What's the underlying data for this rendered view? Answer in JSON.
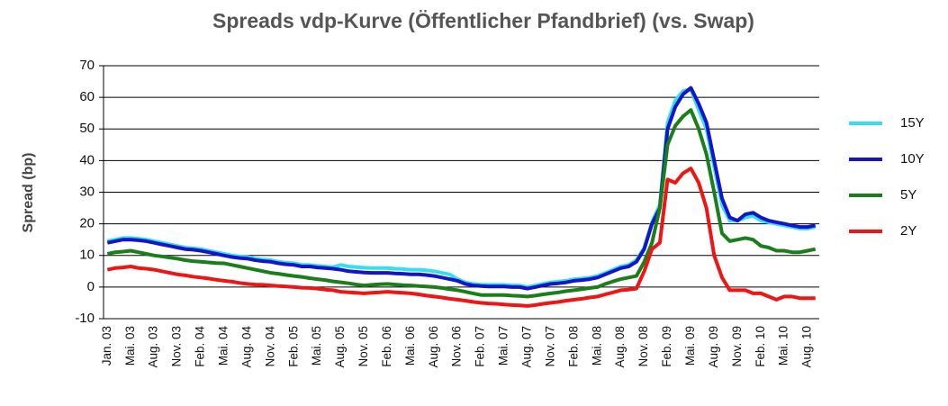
{
  "chart_data": {
    "type": "line",
    "title": "Spreads vdp-Kurve (Öffentlicher Pfandbrief) (vs. Swap)",
    "y_label": "Spread (bp)",
    "categories": [
      "Jan. 03",
      null,
      null,
      "Mai. 03",
      null,
      null,
      "Aug. 03",
      null,
      null,
      "Nov. 03",
      null,
      null,
      "Feb. 04",
      null,
      null,
      "Mai. 04",
      null,
      null,
      "Aug. 04",
      null,
      null,
      "Nov. 04",
      null,
      null,
      "Feb. 05",
      null,
      null,
      "Mai. 05",
      null,
      null,
      "Aug. 05",
      null,
      null,
      "Nov. 05",
      null,
      null,
      "Feb. 06",
      null,
      null,
      "Mai. 06",
      null,
      null,
      "Aug. 06",
      null,
      null,
      "Nov. 06",
      null,
      null,
      "Feb. 07",
      null,
      null,
      "Mai. 07",
      null,
      null,
      "Aug. 07",
      null,
      null,
      "Nov. 07",
      null,
      null,
      "Feb. 08",
      null,
      null,
      "Mai. 08",
      null,
      null,
      "Aug. 08",
      null,
      null,
      "Nov. 08",
      null,
      null,
      "Feb. 09",
      null,
      null,
      "Mai. 09",
      null,
      null,
      "Aug. 09",
      null,
      null,
      "Nov. 09",
      null,
      null,
      "Feb. 10",
      null,
      null,
      "Mai. 10",
      null,
      null,
      "Aug. 10",
      null
    ],
    "series": [
      {
        "name": "15Y",
        "color": "#33dff0",
        "values": [
          14.5,
          15,
          15.5,
          15.5,
          15.3,
          15,
          14.5,
          14,
          13.5,
          13,
          12.5,
          12.3,
          12,
          11.5,
          11,
          10.5,
          10,
          9.7,
          9.5,
          9,
          8.7,
          8.5,
          8,
          7.7,
          7.5,
          7,
          7,
          6.7,
          6.5,
          6.3,
          7,
          6.5,
          6.3,
          6.1,
          6,
          6,
          6,
          5.8,
          5.7,
          5.5,
          5.5,
          5.3,
          5,
          4.5,
          4,
          2.5,
          1.5,
          1,
          0.8,
          0.7,
          0.7,
          0.7,
          0.5,
          0.5,
          0,
          0.5,
          1,
          1.5,
          1.7,
          2,
          2.5,
          2.7,
          3,
          3.5,
          4.5,
          5.5,
          6.5,
          7,
          8.5,
          12.5,
          20.5,
          26,
          52,
          59,
          62,
          62.5,
          56,
          50,
          38,
          26,
          21,
          21,
          22,
          22.5,
          21,
          20.5,
          20,
          19.5,
          19,
          18.5,
          18.5,
          19
        ]
      },
      {
        "name": "10Y",
        "color": "#1414c8",
        "values": [
          14,
          14.5,
          15,
          15,
          14.8,
          14.5,
          14,
          13.5,
          13,
          12.5,
          12,
          11.8,
          11.5,
          11,
          10.5,
          10,
          9.5,
          9.2,
          9,
          8.5,
          8.2,
          8,
          7.5,
          7.2,
          7,
          6.5,
          6.5,
          6.2,
          6,
          5.8,
          5.5,
          5,
          4.8,
          4.6,
          4.5,
          4.5,
          4.5,
          4.3,
          4.2,
          4,
          4,
          3.8,
          3.5,
          3,
          2.5,
          2,
          1,
          0.5,
          0.3,
          0.2,
          0.2,
          0.2,
          0,
          0,
          -0.5,
          0,
          0.5,
          1,
          1.2,
          1.5,
          2,
          2.2,
          2.5,
          3,
          4,
          5,
          6,
          6.5,
          8,
          12,
          20,
          25,
          50,
          57,
          61,
          63,
          58,
          52,
          40,
          28,
          22,
          21,
          23,
          23.5,
          22,
          21,
          20.5,
          20,
          19.5,
          19,
          19,
          19.5
        ]
      },
      {
        "name": "5Y",
        "color": "#1a7f1a",
        "values": [
          10.5,
          11,
          11.2,
          11.5,
          11,
          10.5,
          10,
          9.7,
          9.3,
          9,
          8.5,
          8.2,
          8,
          7.8,
          7.6,
          7.5,
          7,
          6.5,
          6,
          5.5,
          5,
          4.5,
          4.2,
          3.8,
          3.5,
          3.2,
          2.8,
          2.5,
          2.2,
          1.8,
          1.5,
          1.2,
          0.8,
          0.5,
          0.7,
          0.9,
          1,
          0.8,
          0.6,
          0.5,
          0.3,
          0.2,
          0,
          -0.3,
          -0.7,
          -1,
          -1.5,
          -2,
          -2.5,
          -2.5,
          -2.5,
          -2.5,
          -2.7,
          -2.8,
          -3,
          -2.7,
          -2.3,
          -2,
          -1.7,
          -1.3,
          -1,
          -0.7,
          -0.3,
          0,
          1,
          1.8,
          2.5,
          3,
          3.5,
          8,
          14,
          25,
          45,
          51,
          54,
          56,
          50,
          42,
          30,
          17,
          14.5,
          15,
          15.5,
          15,
          13,
          12.5,
          11.5,
          11.5,
          11,
          11,
          11.5,
          12
        ]
      },
      {
        "name": "2Y",
        "color": "#ee1515",
        "values": [
          5.5,
          6,
          6.2,
          6.5,
          6,
          5.8,
          5.5,
          5,
          4.5,
          4,
          3.7,
          3.3,
          3,
          2.7,
          2.3,
          2,
          1.7,
          1.3,
          1,
          0.8,
          0.7,
          0.5,
          0.3,
          0.2,
          0,
          -0.2,
          -0.3,
          -0.5,
          -0.8,
          -1,
          -1.5,
          -1.7,
          -1.8,
          -2,
          -1.8,
          -1.7,
          -1.5,
          -1.7,
          -1.8,
          -2,
          -2.3,
          -2.7,
          -3,
          -3.3,
          -3.7,
          -4,
          -4.3,
          -4.7,
          -5,
          -5.2,
          -5.3,
          -5.5,
          -5.7,
          -5.8,
          -6,
          -5.7,
          -5.3,
          -5,
          -4.7,
          -4.3,
          -4,
          -3.7,
          -3.3,
          -3,
          -2.3,
          -1.7,
          -1,
          -0.8,
          -0.5,
          5,
          12,
          14,
          34,
          33,
          36,
          37.5,
          33,
          25,
          10,
          3,
          -1,
          -1,
          -1,
          -2,
          -2,
          -3,
          -4,
          -3,
          -3,
          -3.5,
          -3.5,
          -3.5
        ]
      }
    ],
    "ylim": [
      -10,
      70
    ],
    "yticks": [
      -10,
      0,
      10,
      20,
      30,
      40,
      50,
      60,
      70
    ],
    "grid": true,
    "legend": "right"
  }
}
